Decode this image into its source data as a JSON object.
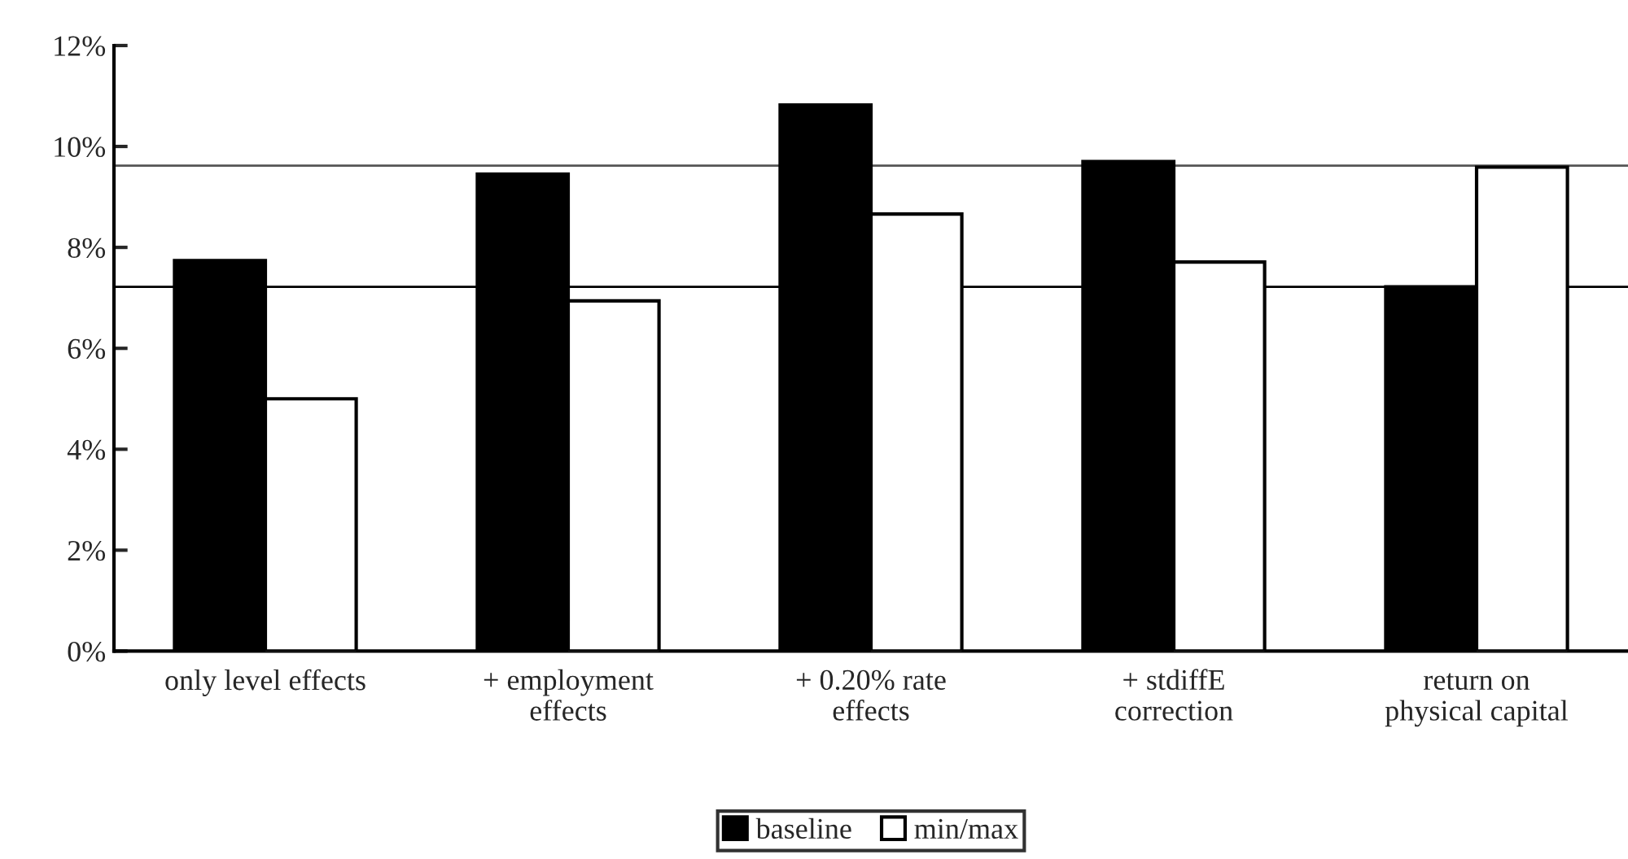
{
  "chart_data": {
    "type": "bar",
    "categories": [
      "only level effects",
      "+ employment\neffects",
      "+ 0.20% rate\neffects",
      "+ stdiffE\ncorrection",
      "return on\nphysical capital"
    ],
    "series": [
      {
        "name": "baseline",
        "color": "#000000",
        "values": [
          7.74,
          9.45,
          10.82,
          9.7,
          7.22
        ]
      },
      {
        "name": "min/max",
        "color": "#ffffff",
        "values": [
          5.0,
          6.94,
          8.66,
          7.71,
          9.59
        ]
      }
    ],
    "ylim": [
      0,
      12
    ],
    "yticks": [
      {
        "value": 0,
        "label": "0%"
      },
      {
        "value": 2,
        "label": "2%"
      },
      {
        "value": 4,
        "label": "4%"
      },
      {
        "value": 6,
        "label": "6%"
      },
      {
        "value": 8,
        "label": "8%"
      },
      {
        "value": 10,
        "label": "10%"
      },
      {
        "value": 12,
        "label": "12%"
      }
    ],
    "ref_lines": [
      {
        "axis": "y",
        "value": 9.62,
        "color": "#555555"
      },
      {
        "axis": "y",
        "value": 7.22,
        "color": "#000000"
      }
    ],
    "legend": "bottom",
    "grid": false
  }
}
